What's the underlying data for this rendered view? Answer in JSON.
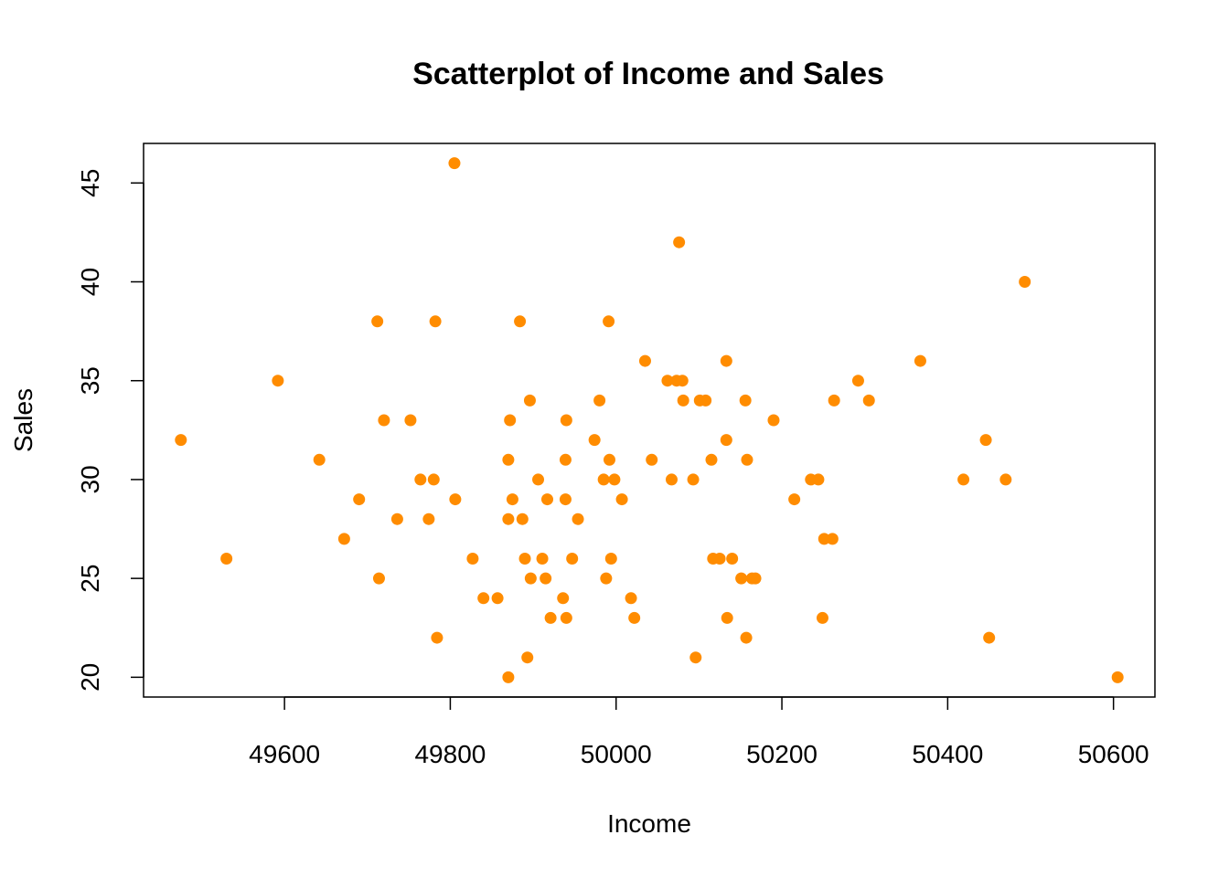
{
  "chart_data": {
    "type": "scatter",
    "title": "Scatterplot of Income and Sales",
    "xlabel": "Income",
    "ylabel": "Sales",
    "xlim": [
      49430,
      50650
    ],
    "ylim": [
      19,
      47
    ],
    "x_ticks": [
      49600,
      49800,
      50000,
      50200,
      50400,
      50600
    ],
    "y_ticks": [
      20,
      25,
      30,
      35,
      40,
      45
    ],
    "grid": false,
    "legend": "none",
    "point_color": "#ff8c00",
    "series": [
      {
        "points": [
          [
            49475,
            32
          ],
          [
            49530,
            26
          ],
          [
            49592,
            35
          ],
          [
            49642,
            31
          ],
          [
            49672,
            27
          ],
          [
            49690,
            29
          ],
          [
            49712,
            38
          ],
          [
            49714,
            25
          ],
          [
            49720,
            33
          ],
          [
            49736,
            28
          ],
          [
            49752,
            33
          ],
          [
            49764,
            30
          ],
          [
            49774,
            28
          ],
          [
            49780,
            30
          ],
          [
            49782,
            38
          ],
          [
            49784,
            22
          ],
          [
            49805,
            46
          ],
          [
            49806,
            29
          ],
          [
            49827,
            26
          ],
          [
            49840,
            24
          ],
          [
            49857,
            24
          ],
          [
            49870,
            31
          ],
          [
            49870,
            28
          ],
          [
            49870,
            20
          ],
          [
            49872,
            33
          ],
          [
            49875,
            29
          ],
          [
            49884,
            38
          ],
          [
            49887,
            28
          ],
          [
            49890,
            26
          ],
          [
            49893,
            21
          ],
          [
            49896,
            34
          ],
          [
            49897,
            25
          ],
          [
            49906,
            30
          ],
          [
            49911,
            26
          ],
          [
            49915,
            25
          ],
          [
            49917,
            29
          ],
          [
            49921,
            23
          ],
          [
            49936,
            24
          ],
          [
            49939,
            29
          ],
          [
            49939,
            31
          ],
          [
            49940,
            33
          ],
          [
            49940,
            23
          ],
          [
            49947,
            26
          ],
          [
            49954,
            28
          ],
          [
            49974,
            32
          ],
          [
            49980,
            34
          ],
          [
            49985,
            30
          ],
          [
            49988,
            25
          ],
          [
            49991,
            38
          ],
          [
            49992,
            31
          ],
          [
            49994,
            26
          ],
          [
            49998,
            30
          ],
          [
            50007,
            29
          ],
          [
            50018,
            24
          ],
          [
            50022,
            23
          ],
          [
            50035,
            36
          ],
          [
            50043,
            31
          ],
          [
            50062,
            35
          ],
          [
            50067,
            30
          ],
          [
            50073,
            35
          ],
          [
            50076,
            42
          ],
          [
            50080,
            35
          ],
          [
            50081,
            34
          ],
          [
            50093,
            30
          ],
          [
            50096,
            21
          ],
          [
            50101,
            34
          ],
          [
            50108,
            34
          ],
          [
            50115,
            31
          ],
          [
            50117,
            26
          ],
          [
            50125,
            26
          ],
          [
            50133,
            36
          ],
          [
            50133,
            32
          ],
          [
            50134,
            23
          ],
          [
            50140,
            26
          ],
          [
            50151,
            25
          ],
          [
            50156,
            34
          ],
          [
            50157,
            22
          ],
          [
            50158,
            31
          ],
          [
            50164,
            25
          ],
          [
            50168,
            25
          ],
          [
            50190,
            33
          ],
          [
            50215,
            29
          ],
          [
            50235,
            30
          ],
          [
            50244,
            30
          ],
          [
            50249,
            23
          ],
          [
            50251,
            27
          ],
          [
            50261,
            27
          ],
          [
            50263,
            34
          ],
          [
            50292,
            35
          ],
          [
            50305,
            34
          ],
          [
            50367,
            36
          ],
          [
            50419,
            30
          ],
          [
            50446,
            32
          ],
          [
            50450,
            22
          ],
          [
            50470,
            30
          ],
          [
            50493,
            40
          ],
          [
            50605,
            20
          ]
        ]
      }
    ]
  }
}
